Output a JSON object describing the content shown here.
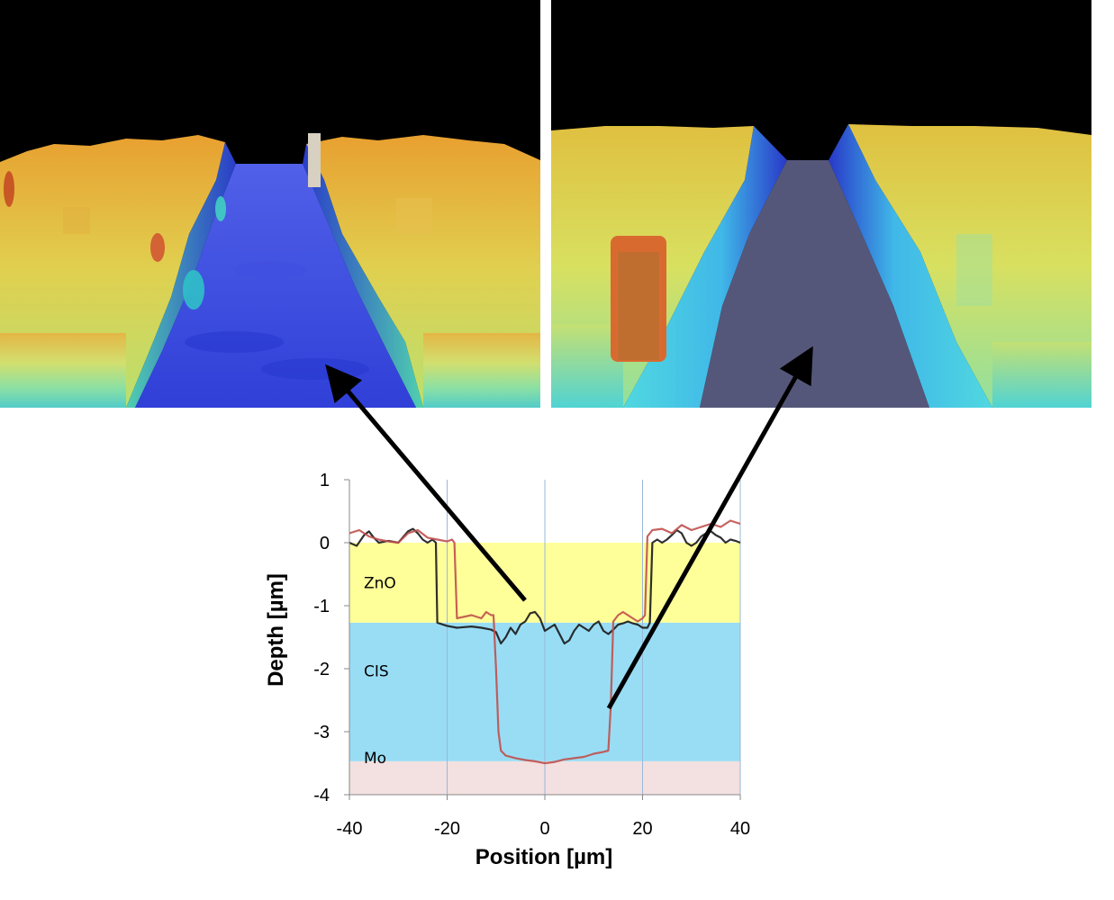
{
  "colors": {
    "zno_band": "#ffff99",
    "cis_band": "#99ddf5",
    "mo_band": "#f3e0e0",
    "surface_high": "#e8a030",
    "surface_mid": "#d8e060",
    "surface_low": "#3a4ee0",
    "trench_dark": "#55577a"
  },
  "chart_data": {
    "type": "line",
    "xlabel": "Position  [µm]",
    "ylabel": "Depth [µm]",
    "xlim": [
      -40,
      40
    ],
    "ylim": [
      -4,
      1
    ],
    "xticks": [
      -40,
      -20,
      0,
      20,
      40
    ],
    "yticks": [
      1,
      0,
      -1,
      -2,
      -3,
      -4
    ],
    "grid": "vertical",
    "bands": [
      {
        "label": "ZnO",
        "from": 0,
        "to": -1.27,
        "color": "#ffff99"
      },
      {
        "label": "CIS",
        "from": -1.27,
        "to": -3.47,
        "color": "#99ddf5"
      },
      {
        "label": "Mo",
        "from": -3.47,
        "to": -4,
        "color": "#f3e0e0"
      }
    ],
    "series": [
      {
        "color": "#1a1a1a",
        "x": [
          -40,
          -38.5,
          -37,
          -36,
          -35,
          -34,
          -32,
          -30,
          -28,
          -27,
          -26,
          -25,
          -24,
          -23,
          -22.3,
          -22,
          -20,
          -18,
          -15,
          -13,
          -11,
          -10.5,
          -10,
          -9,
          -8,
          -7,
          -6,
          -5,
          -4,
          -3,
          -2,
          -1,
          0,
          1,
          2,
          3,
          4,
          5,
          6,
          7,
          8,
          9,
          10,
          11,
          12,
          13,
          14,
          15,
          16,
          17,
          18,
          19,
          20,
          21,
          21.5,
          22,
          23,
          24,
          25,
          26,
          27,
          28,
          29,
          30,
          31,
          32,
          33,
          34,
          35,
          36,
          37,
          38,
          39,
          40
        ],
        "y": [
          0,
          -0.05,
          0.12,
          0.18,
          0.08,
          0.0,
          0.03,
          0.0,
          0.18,
          0.22,
          0.15,
          0.05,
          0.0,
          0.05,
          0.0,
          -1.27,
          -1.32,
          -1.35,
          -1.33,
          -1.35,
          -1.38,
          -1.4,
          -1.42,
          -1.6,
          -1.5,
          -1.35,
          -1.45,
          -1.3,
          -1.25,
          -1.12,
          -1.1,
          -1.2,
          -1.4,
          -1.35,
          -1.3,
          -1.45,
          -1.6,
          -1.55,
          -1.4,
          -1.3,
          -1.35,
          -1.4,
          -1.3,
          -1.25,
          -1.4,
          -1.45,
          -1.38,
          -1.3,
          -1.28,
          -1.25,
          -1.28,
          -1.3,
          -1.35,
          -1.35,
          -1.27,
          0.0,
          0.05,
          0.0,
          0.05,
          0.12,
          0.2,
          0.15,
          0.0,
          -0.05,
          0.0,
          0.1,
          0.15,
          0.18,
          0.12,
          0.08,
          0.0,
          0.05,
          0.03,
          0.0
        ]
      },
      {
        "color": "#c0504d",
        "x": [
          -40,
          -38,
          -36,
          -34,
          -32,
          -30,
          -28,
          -26,
          -24,
          -22,
          -20,
          -19,
          -18.5,
          -18,
          -15,
          -13,
          -12,
          -11,
          -10.5,
          -10,
          -9.5,
          -9,
          -8,
          -6,
          -4,
          -2,
          0,
          2,
          4,
          6,
          8,
          10,
          12,
          13,
          13.5,
          14,
          15,
          16,
          17,
          18,
          19,
          20,
          20.5,
          21,
          22,
          24,
          26,
          28,
          30,
          32,
          34,
          36,
          38,
          40
        ],
        "y": [
          0.15,
          0.2,
          0.1,
          0.05,
          0.02,
          0.0,
          0.15,
          0.2,
          0.08,
          0.05,
          0.02,
          0.05,
          0.0,
          -1.2,
          -1.15,
          -1.2,
          -1.1,
          -1.15,
          -1.15,
          -2.0,
          -3.0,
          -3.3,
          -3.38,
          -3.42,
          -3.45,
          -3.47,
          -3.5,
          -3.48,
          -3.44,
          -3.42,
          -3.4,
          -3.35,
          -3.32,
          -3.3,
          -2.6,
          -1.25,
          -1.15,
          -1.1,
          -1.15,
          -1.2,
          -1.25,
          -1.2,
          -1.15,
          0.1,
          0.2,
          0.22,
          0.15,
          0.28,
          0.2,
          0.25,
          0.3,
          0.25,
          0.35,
          0.3
        ]
      }
    ]
  }
}
